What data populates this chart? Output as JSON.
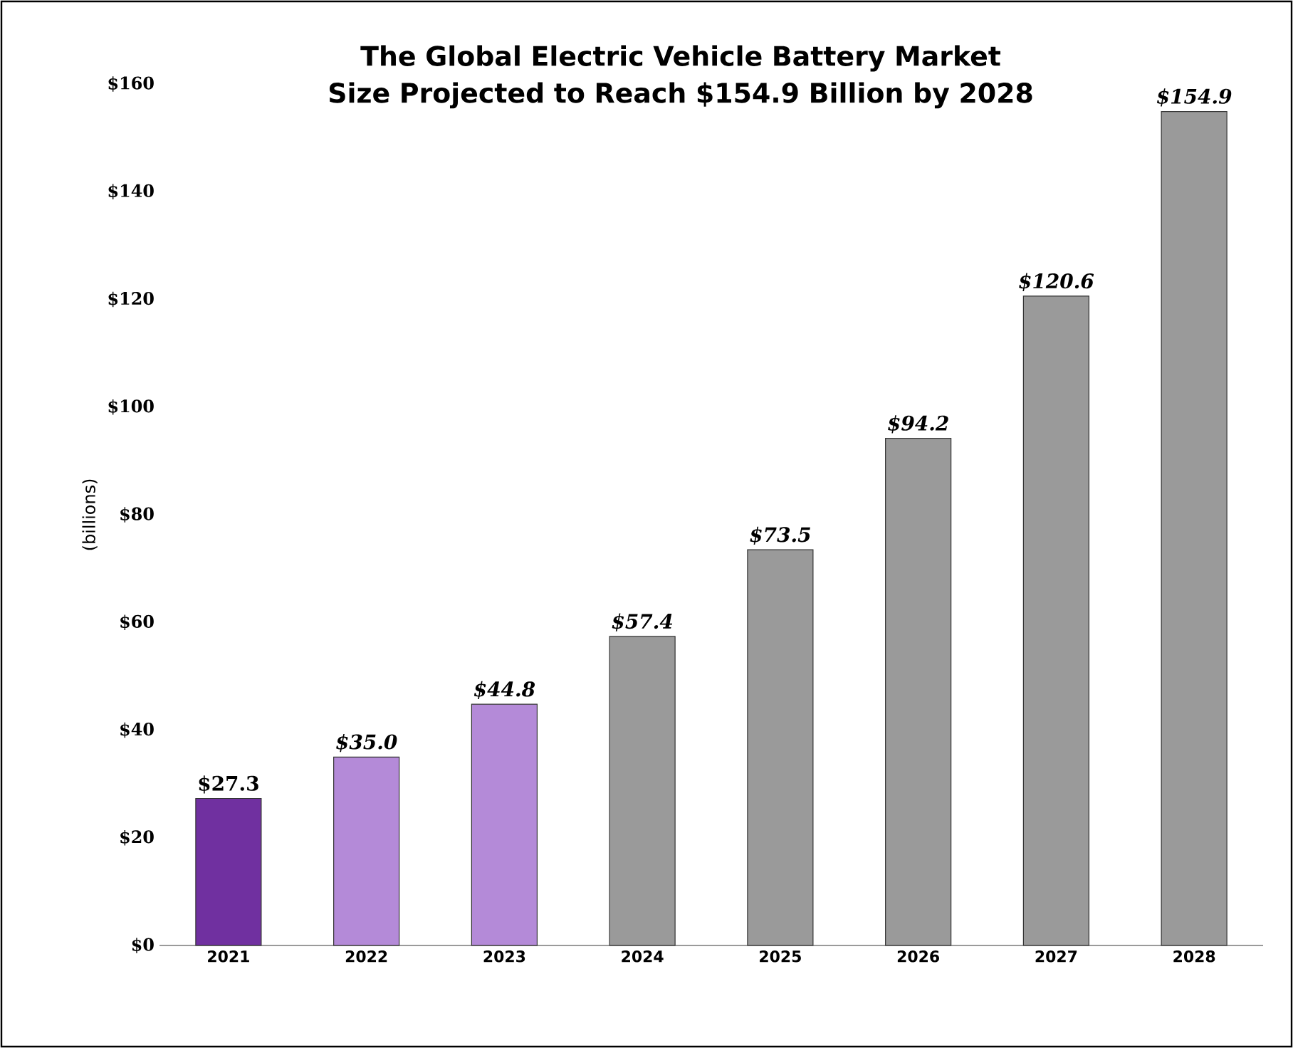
{
  "chart_data": {
    "type": "bar",
    "title": "The Global Electric Vehicle Battery Market Size Projected to Reach $154.9 Billion by 2028",
    "ylabel": "(billions)",
    "categories": [
      "2021",
      "2022",
      "2023",
      "2024",
      "2025",
      "2026",
      "2027",
      "2028"
    ],
    "values": [
      27.3,
      35.0,
      44.8,
      57.4,
      73.5,
      94.2,
      120.6,
      154.9
    ],
    "value_labels": [
      "$27.3",
      "$35.0",
      "$44.8",
      "$57.4",
      "$73.5",
      "$94.2",
      "$120.6",
      "$154.9"
    ],
    "colors": [
      "#7030a0",
      "#b48ad8",
      "#b48ad8",
      "#9a9a9a",
      "#9a9a9a",
      "#9a9a9a",
      "#9a9a9a",
      "#9a9a9a"
    ],
    "ylim": [
      0,
      160
    ],
    "yticks": [
      {
        "value": 0,
        "label": "$0"
      },
      {
        "value": 20,
        "label": "$20"
      },
      {
        "value": 40,
        "label": "$40"
      },
      {
        "value": 60,
        "label": "$60"
      },
      {
        "value": 80,
        "label": "$80"
      },
      {
        "value": 100,
        "label": "$100"
      },
      {
        "value": 120,
        "label": "$120"
      },
      {
        "value": 140,
        "label": "$140"
      },
      {
        "value": 160,
        "label": "$160"
      }
    ]
  }
}
